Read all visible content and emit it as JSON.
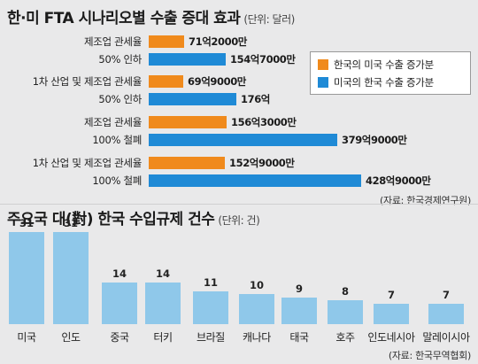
{
  "chart_data": [
    {
      "type": "bar",
      "orientation": "horizontal",
      "title": "한·미 FTA 시나리오별 수출 증대 효과",
      "unit": "(단위: 달러)",
      "source": "(자료: 한국경제연구원)",
      "legend_placement": "top-right",
      "categories": [
        [
          "제조업 관세율",
          "50% 인하"
        ],
        [
          "1차 산업 및 제조업 관세율",
          "50% 인하"
        ],
        [
          "제조업 관세율",
          "100% 철폐"
        ],
        [
          "1차 산업 및 제조업 관세율",
          "100% 철폐"
        ]
      ],
      "series": [
        {
          "name": "한국의 미국 수출 증가분",
          "color": "#f08a1c",
          "values": [
            7120000000,
            6990000000,
            15630000000,
            15290000000
          ],
          "labels": [
            "71억2000만",
            "69억9000만",
            "156억3000만",
            "152억9000만"
          ]
        },
        {
          "name": "미국의 한국 수출 증가분",
          "color": "#1f8ad6",
          "values": [
            15470000000,
            17600000000,
            37990000000,
            42890000000
          ],
          "labels": [
            "154억7000만",
            "176억",
            "379억9000만",
            "428억9000만"
          ]
        }
      ]
    },
    {
      "type": "bar",
      "orientation": "vertical",
      "title": "주요국 대(對) 한국 수입규제 건수",
      "unit": "(단위: 건)",
      "source": "(자료: 한국무역협회)",
      "color": "#8fc8ea",
      "categories": [
        "미국",
        "인도",
        "중국",
        "터키",
        "브라질",
        "캐나다",
        "태국",
        "호주",
        "인도네시아",
        "말레이시아"
      ],
      "values": [
        31,
        31,
        14,
        14,
        11,
        10,
        9,
        8,
        7,
        7
      ]
    }
  ]
}
